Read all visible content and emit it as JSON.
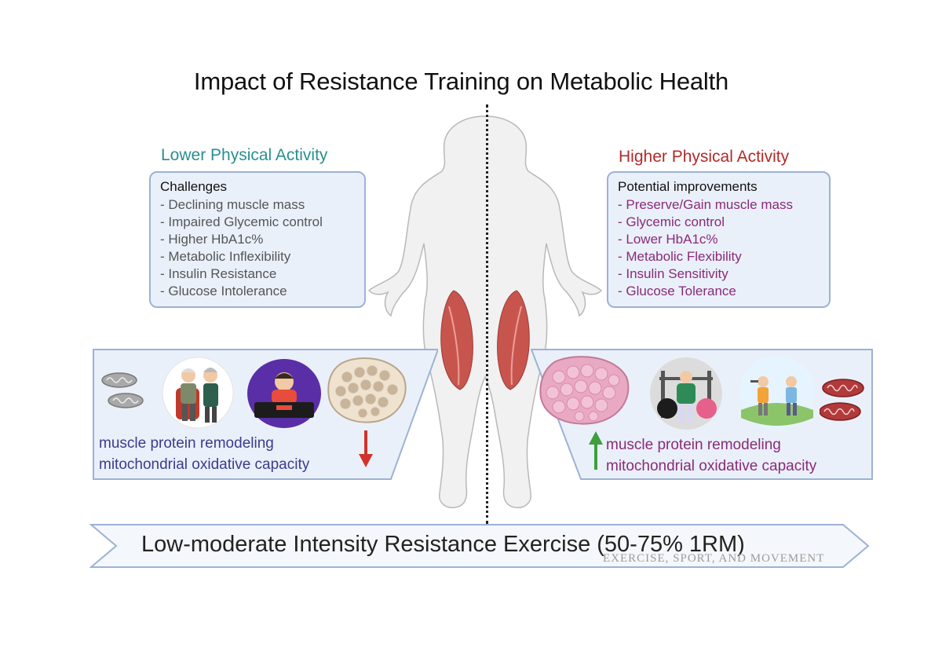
{
  "title": "Impact of Resistance Training on Metabolic Health",
  "left": {
    "heading": "Lower Physical Activity",
    "box_title": "Challenges",
    "items": [
      "- Declining muscle mass",
      "- Impaired Glycemic control",
      "- Higher HbA1c%",
      "- Metabolic Inflexibility",
      "- Insulin Resistance",
      "- Glucose Intolerance"
    ],
    "panel_lines": [
      "muscle protein remodeling",
      "mitochondrial oxidative capacity"
    ],
    "trend": "decrease",
    "icons": [
      "mitochondria-icon",
      "elderly-couple-icon",
      "sedentary-gamer-icon",
      "muscle-cross-section-icon",
      "down-arrow-icon"
    ]
  },
  "right": {
    "heading": "Higher Physical Activity",
    "box_title": "Potential  improvements",
    "items": [
      "- Preserve/Gain muscle mass",
      "- Glycemic control",
      "- Lower HbA1c%",
      "- Metabolic Flexibility",
      "- Insulin Sensitivity",
      "- Glucose Tolerance"
    ],
    "panel_lines": [
      "muscle protein remodeling",
      "mitochondrial oxidative capacity"
    ],
    "trend": "increase",
    "icons": [
      "up-arrow-icon",
      "muscle-cross-section-icon",
      "gym-exercise-icon",
      "outdoor-exercise-icon",
      "mitochondria-icon"
    ]
  },
  "banner": "Low-moderate Intensity Resistance Exercise (50-75% 1RM)",
  "watermark": "EXERCISE, SPORT, AND MOVEMENT",
  "colors": {
    "low_heading": "#2a8f8f",
    "high_heading": "#b22a2a",
    "box_fill": "#eaf0fa",
    "box_border": "#9cb2d4",
    "improvement_text": "#8a2a78",
    "challenge_text": "#555555",
    "left_panel_text": "#3b3b8c",
    "muscle": "#c8554d",
    "down_arrow": "#d0332b",
    "up_arrow": "#3f9e3f"
  }
}
